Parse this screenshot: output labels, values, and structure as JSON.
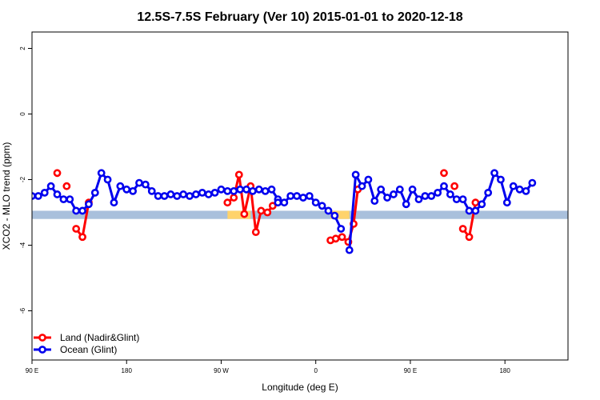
{
  "chart_data": {
    "type": "line",
    "title": "12.5S-7.5S February (Ver 10)   2015-01-01 to 2020-12-18",
    "xlabel": "Longitude (deg E)",
    "ylabel": "XCO2 - MLO trend (ppm)",
    "xlim": [
      90,
      600
    ],
    "ylim": [
      -7.5,
      2.5
    ],
    "x_ticks": [
      {
        "value": 90,
        "label": "90 E"
      },
      {
        "value": 180,
        "label": "180"
      },
      {
        "value": 270,
        "label": "90 W"
      },
      {
        "value": 360,
        "label": "0"
      },
      {
        "value": 450,
        "label": "90 E"
      },
      {
        "value": 540,
        "label": "180"
      }
    ],
    "y_ticks": [
      {
        "value": 2,
        "label": "2"
      },
      {
        "value": 0,
        "label": "0"
      },
      {
        "value": -2,
        "label": "-2"
      },
      {
        "value": -4,
        "label": "-4"
      },
      {
        "value": -6,
        "label": "-6"
      }
    ],
    "band": {
      "y_low": -3.2,
      "y_high": -2.95,
      "color": "#a9c0dc",
      "land_color": "#ffd36b",
      "land_ranges": [
        [
          276,
          298
        ],
        [
          374,
          392
        ]
      ]
    },
    "legend": {
      "position": "bottom-left",
      "entries": [
        {
          "label": "Land (Nadir&Glint)",
          "color": "#ff0000"
        },
        {
          "label": "Ocean (Glint)",
          "color": "#0000ee"
        }
      ]
    },
    "series": [
      {
        "name": "Land (Nadir&Glint)",
        "color": "#ff0000",
        "segments": [
          [
            [
              114,
              -1.8
            ]
          ],
          [
            [
              123,
              -2.2
            ]
          ],
          [
            [
              132,
              -3.5
            ],
            [
              138,
              -3.75
            ],
            [
              144,
              -2.7
            ]
          ],
          [
            [
              276,
              -2.7
            ],
            [
              282,
              -2.55
            ],
            [
              287,
              -1.85
            ],
            [
              292,
              -3.05
            ],
            [
              298,
              -2.2
            ],
            [
              303,
              -3.6
            ],
            [
              308,
              -2.95
            ],
            [
              314,
              -3.0
            ],
            [
              319,
              -2.8
            ]
          ],
          [
            [
              374,
              -3.85
            ],
            [
              379,
              -3.8
            ],
            [
              385,
              -3.75
            ],
            [
              391,
              -3.9
            ],
            [
              396,
              -3.35
            ],
            [
              400,
              -2.3
            ]
          ],
          [
            [
              482,
              -1.8
            ]
          ],
          [
            [
              492,
              -2.2
            ]
          ],
          [
            [
              500,
              -3.5
            ],
            [
              506,
              -3.75
            ],
            [
              512,
              -2.7
            ]
          ]
        ]
      },
      {
        "name": "Ocean (Glint)",
        "color": "#0000ee",
        "segments": [
          [
            [
              90,
              -2.5
            ],
            [
              96,
              -2.5
            ],
            [
              102,
              -2.4
            ],
            [
              108,
              -2.2
            ],
            [
              114,
              -2.45
            ],
            [
              120,
              -2.6
            ],
            [
              126,
              -2.6
            ],
            [
              132,
              -2.95
            ],
            [
              138,
              -2.95
            ],
            [
              144,
              -2.75
            ],
            [
              150,
              -2.4
            ],
            [
              156,
              -1.8
            ],
            [
              162,
              -2.0
            ],
            [
              168,
              -2.7
            ],
            [
              174,
              -2.2
            ],
            [
              180,
              -2.3
            ],
            [
              186,
              -2.35
            ],
            [
              192,
              -2.1
            ],
            [
              198,
              -2.15
            ],
            [
              204,
              -2.35
            ],
            [
              210,
              -2.5
            ],
            [
              216,
              -2.5
            ],
            [
              222,
              -2.45
            ],
            [
              228,
              -2.5
            ],
            [
              234,
              -2.45
            ],
            [
              240,
              -2.5
            ],
            [
              246,
              -2.45
            ],
            [
              252,
              -2.4
            ],
            [
              258,
              -2.45
            ],
            [
              264,
              -2.4
            ],
            [
              270,
              -2.3
            ],
            [
              276,
              -2.35
            ],
            [
              282,
              -2.35
            ],
            [
              288,
              -2.3
            ],
            [
              294,
              -2.3
            ],
            [
              300,
              -2.35
            ],
            [
              306,
              -2.3
            ],
            [
              312,
              -2.35
            ],
            [
              318,
              -2.3
            ],
            [
              324,
              -2.6
            ]
          ],
          [
            [
              324,
              -2.7
            ],
            [
              330,
              -2.7
            ],
            [
              336,
              -2.5
            ],
            [
              342,
              -2.5
            ],
            [
              348,
              -2.55
            ],
            [
              354,
              -2.5
            ],
            [
              360,
              -2.7
            ],
            [
              366,
              -2.8
            ],
            [
              372,
              -2.95
            ],
            [
              378,
              -3.1
            ],
            [
              384,
              -3.5
            ]
          ],
          [
            [
              392,
              -4.15
            ],
            [
              398,
              -1.85
            ],
            [
              404,
              -2.2
            ],
            [
              410,
              -2.0
            ],
            [
              416,
              -2.65
            ],
            [
              422,
              -2.3
            ],
            [
              428,
              -2.55
            ],
            [
              434,
              -2.45
            ],
            [
              440,
              -2.3
            ],
            [
              446,
              -2.75
            ],
            [
              452,
              -2.3
            ],
            [
              458,
              -2.6
            ],
            [
              464,
              -2.5
            ],
            [
              470,
              -2.5
            ],
            [
              476,
              -2.4
            ],
            [
              482,
              -2.2
            ],
            [
              488,
              -2.45
            ],
            [
              494,
              -2.6
            ],
            [
              500,
              -2.6
            ],
            [
              506,
              -2.95
            ],
            [
              512,
              -2.95
            ],
            [
              518,
              -2.75
            ],
            [
              524,
              -2.4
            ],
            [
              530,
              -1.8
            ],
            [
              536,
              -2.0
            ],
            [
              542,
              -2.7
            ],
            [
              548,
              -2.2
            ],
            [
              554,
              -2.3
            ],
            [
              560,
              -2.35
            ],
            [
              566,
              -2.1
            ]
          ]
        ]
      }
    ]
  }
}
